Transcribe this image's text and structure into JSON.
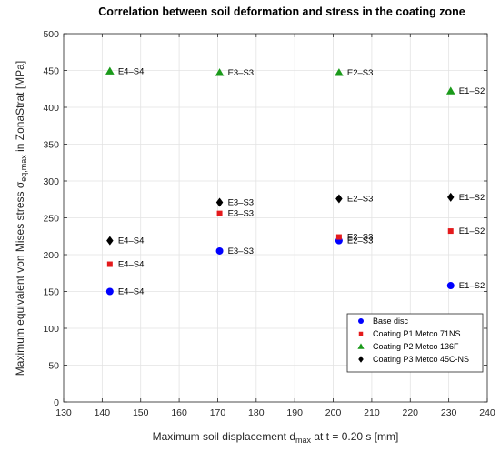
{
  "chart_data": {
    "type": "scatter",
    "title": "Correlation between soil deformation and stress in the coating zone",
    "xlabel": {
      "main": "Maximum soil displacement d",
      "sub": "max",
      "tail": " at t = 0.20 s [mm]"
    },
    "ylabel": {
      "main": "Maximum equivalent von Mises stress σ",
      "sub": "eq,max",
      "tail": " in ZonaStrat [MPa]"
    },
    "xlim": [
      130,
      240
    ],
    "ylim": [
      0,
      500
    ],
    "xticks": [
      "130",
      "140",
      "150",
      "160",
      "170",
      "180",
      "190",
      "200",
      "210",
      "220",
      "230",
      "240"
    ],
    "yticks": [
      "0",
      "50",
      "100",
      "150",
      "200",
      "250",
      "300",
      "350",
      "400",
      "450",
      "500"
    ],
    "grid": true,
    "legend_position": "bottom-right",
    "series": [
      {
        "name": "Base disc",
        "marker": "circle",
        "color": "#0000ff",
        "points": [
          {
            "x": 142,
            "y": 150,
            "label": "E4–S4"
          },
          {
            "x": 170.5,
            "y": 205,
            "label": "E3–S3"
          },
          {
            "x": 201.5,
            "y": 219,
            "label": "E2–S3"
          },
          {
            "x": 230.5,
            "y": 158,
            "label": "E1–S2"
          }
        ]
      },
      {
        "name": "Coating P1 Metco 71NS",
        "marker": "square",
        "color": "#e41a1c",
        "points": [
          {
            "x": 142,
            "y": 187,
            "label": "E4–S4"
          },
          {
            "x": 170.5,
            "y": 256,
            "label": "E3–S3"
          },
          {
            "x": 201.5,
            "y": 224,
            "label": "E2–S3"
          },
          {
            "x": 230.5,
            "y": 232,
            "label": "E1–S2"
          }
        ]
      },
      {
        "name": "Coating P2 Metco 136F",
        "marker": "triangle",
        "color": "#1a9a1a",
        "points": [
          {
            "x": 142,
            "y": 449,
            "label": "E4–S4"
          },
          {
            "x": 170.5,
            "y": 447,
            "label": "E3–S3"
          },
          {
            "x": 201.5,
            "y": 447,
            "label": "E2–S3"
          },
          {
            "x": 230.5,
            "y": 422,
            "label": "E1–S2"
          }
        ]
      },
      {
        "name": "Coating P3 Metco 45C-NS",
        "marker": "diamond",
        "color": "#000000",
        "points": [
          {
            "x": 142,
            "y": 219,
            "label": "E4–S4"
          },
          {
            "x": 170.5,
            "y": 271,
            "label": "E3–S3"
          },
          {
            "x": 201.5,
            "y": 276,
            "label": "E2–S3"
          },
          {
            "x": 230.5,
            "y": 278,
            "label": "E1–S2"
          }
        ]
      }
    ]
  }
}
